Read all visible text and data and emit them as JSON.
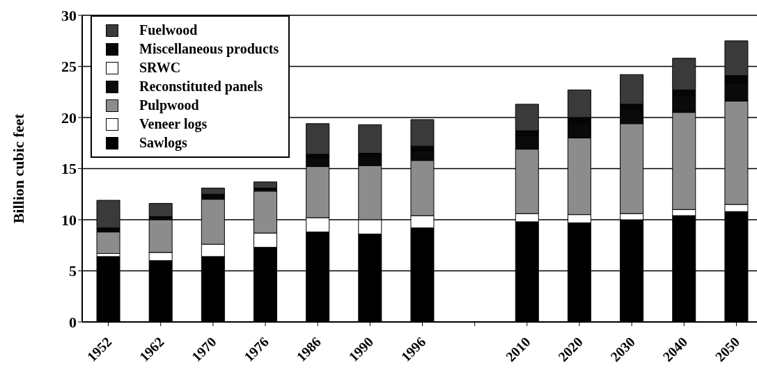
{
  "chart_data": {
    "type": "bar",
    "stacked": true,
    "ylabel": "Billion cubic feet",
    "categories": [
      "1952",
      "1962",
      "1970",
      "1976",
      "1986",
      "1990",
      "1996",
      null,
      "2010",
      "2020",
      "2030",
      "2040",
      "2050"
    ],
    "series": [
      {
        "name": "Sawlogs",
        "color": "#000000",
        "values": [
          6.4,
          6.0,
          6.4,
          7.3,
          8.8,
          8.6,
          9.2,
          null,
          9.8,
          9.7,
          10.0,
          10.4,
          10.8
        ]
      },
      {
        "name": "Veneer logs",
        "color": "#ffffff",
        "values": [
          0.3,
          0.8,
          1.2,
          1.4,
          1.4,
          1.4,
          1.2,
          null,
          0.8,
          0.8,
          0.6,
          0.6,
          0.7
        ]
      },
      {
        "name": "Pulpwood",
        "color": "#8c8c8c",
        "values": [
          2.1,
          3.2,
          4.4,
          4.1,
          5.0,
          5.3,
          5.4,
          null,
          6.3,
          7.5,
          8.8,
          9.5,
          10.1
        ]
      },
      {
        "name": "Reconstituted panels",
        "color": "#0a0a0a",
        "values": [
          null,
          0.2,
          0.3,
          0.2,
          0.9,
          0.9,
          1.0,
          null,
          1.3,
          1.4,
          1.4,
          1.6,
          1.8
        ]
      },
      {
        "name": "SRWC",
        "color": "#ffffff",
        "values": [
          null,
          null,
          null,
          null,
          null,
          null,
          null,
          null,
          null,
          null,
          null,
          null,
          null
        ]
      },
      {
        "name": "Miscellaneous products",
        "color": "#050505",
        "values": [
          0.4,
          0.1,
          0.2,
          0.1,
          0.3,
          0.3,
          0.4,
          null,
          0.5,
          0.6,
          0.5,
          0.6,
          0.7
        ]
      },
      {
        "name": "Fuelwood",
        "color": "#3a3a3a",
        "values": [
          2.7,
          1.3,
          0.6,
          0.6,
          3.0,
          2.8,
          2.6,
          null,
          2.6,
          2.7,
          2.9,
          3.1,
          3.4
        ]
      }
    ],
    "ylim": [
      0,
      30
    ],
    "yticks": [
      0,
      5,
      10,
      15,
      20,
      25,
      30
    ],
    "grid": "y",
    "legend": "top left"
  }
}
